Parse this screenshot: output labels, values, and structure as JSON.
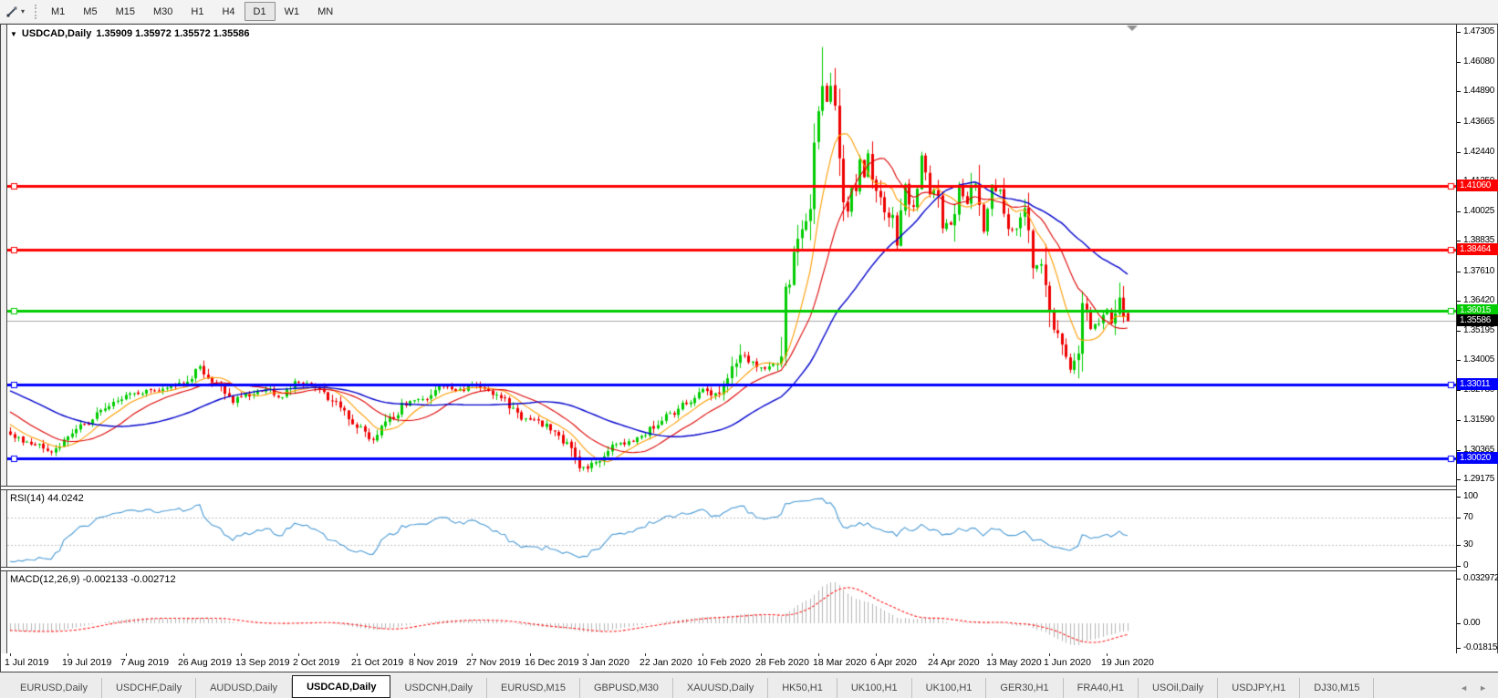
{
  "toolbar": {
    "drawing_tool_icon": "drawing-tools-icon",
    "dropdown_icon": "chevron-down-icon",
    "timeframes": [
      "M1",
      "M5",
      "M15",
      "M30",
      "H1",
      "H4",
      "D1",
      "W1",
      "MN"
    ],
    "active_timeframe": "D1"
  },
  "chart": {
    "title": "USDCAD,Daily",
    "ohlc": "1.35909 1.35972 1.35572 1.35586",
    "current_price": "1.35586",
    "current_price_value": 1.35586,
    "up_color": "#00cc00",
    "down_color": "#ee0000",
    "current_line_color": "#a8a8a8",
    "y_ticks": [
      "1.47305",
      "1.46080",
      "1.44890",
      "1.43665",
      "1.42440",
      "1.41250",
      "1.40025",
      "1.38835",
      "1.37610",
      "1.36420",
      "1.35195",
      "1.34005",
      "1.32780",
      "1.31590",
      "1.30365",
      "1.29175"
    ],
    "y_tick_values": [
      1.47305,
      1.4608,
      1.4489,
      1.43665,
      1.4244,
      1.4125,
      1.40025,
      1.38835,
      1.3761,
      1.3642,
      1.35195,
      1.34005,
      1.3278,
      1.3159,
      1.30365,
      1.29175
    ],
    "x_ticks": [
      "1 Jul 2019",
      "19 Jul 2019",
      "7 Aug 2019",
      "26 Aug 2019",
      "13 Sep 2019",
      "2 Oct 2019",
      "21 Oct 2019",
      "8 Nov 2019",
      "27 Nov 2019",
      "16 Dec 2019",
      "3 Jan 2020",
      "22 Jan 2020",
      "10 Feb 2020",
      "28 Feb 2020",
      "18 Mar 2020",
      "6 Apr 2020",
      "24 Apr 2020",
      "13 May 2020",
      "1 Jun 2020",
      "19 Jun 2020"
    ],
    "horizontal_lines": [
      {
        "label": "1.41060",
        "value": 1.4106,
        "color": "#ff0000"
      },
      {
        "label": "1.38464",
        "value": 1.38464,
        "color": "#ff0000"
      },
      {
        "label": "1.36015",
        "value": 1.36015,
        "color": "#00cc00"
      },
      {
        "label": "1.33011",
        "value": 1.33011,
        "color": "#0000ff"
      },
      {
        "label": "1.30020",
        "value": 1.3002,
        "color": "#0000ff"
      }
    ]
  },
  "chart_data": {
    "type": "candlestick",
    "symbol": "USDCAD",
    "timeframe": "Daily",
    "last_bar": {
      "open": 1.35909,
      "high": 1.35972,
      "low": 1.35572,
      "close": 1.35586
    },
    "price_axis_range": [
      1.29175,
      1.47305
    ],
    "visible_bars": 272,
    "bars_per_x_tick": 14,
    "close_anchors": [
      [
        -60,
        1.348
      ],
      [
        -45,
        1.34
      ],
      [
        -30,
        1.336
      ],
      [
        -15,
        1.327
      ],
      [
        -5,
        1.314
      ],
      [
        0,
        1.3095
      ],
      [
        6,
        1.306
      ],
      [
        11,
        1.3032
      ],
      [
        14,
        1.3078
      ],
      [
        18,
        1.314
      ],
      [
        24,
        1.3215
      ],
      [
        30,
        1.3268
      ],
      [
        36,
        1.3282
      ],
      [
        42,
        1.331
      ],
      [
        46,
        1.3368
      ],
      [
        50,
        1.331
      ],
      [
        54,
        1.3235
      ],
      [
        58,
        1.3262
      ],
      [
        62,
        1.329
      ],
      [
        66,
        1.3252
      ],
      [
        70,
        1.3318
      ],
      [
        74,
        1.329
      ],
      [
        78,
        1.3232
      ],
      [
        84,
        1.3132
      ],
      [
        88,
        1.3072
      ],
      [
        92,
        1.316
      ],
      [
        96,
        1.3228
      ],
      [
        100,
        1.3242
      ],
      [
        104,
        1.3298
      ],
      [
        108,
        1.3272
      ],
      [
        112,
        1.33
      ],
      [
        116,
        1.3282
      ],
      [
        120,
        1.3232
      ],
      [
        124,
        1.3172
      ],
      [
        126,
        1.3162
      ],
      [
        130,
        1.313
      ],
      [
        134,
        1.3082
      ],
      [
        137,
        1.2995
      ],
      [
        139,
        1.2962
      ],
      [
        142,
        1.2992
      ],
      [
        146,
        1.3052
      ],
      [
        150,
        1.3068
      ],
      [
        154,
        1.3106
      ],
      [
        158,
        1.3162
      ],
      [
        162,
        1.3202
      ],
      [
        166,
        1.3252
      ],
      [
        168,
        1.3292
      ],
      [
        171,
        1.326
      ],
      [
        174,
        1.3322
      ],
      [
        177,
        1.342
      ],
      [
        180,
        1.3392
      ],
      [
        183,
        1.336
      ],
      [
        185,
        1.3382
      ],
      [
        187,
        1.3422
      ],
      [
        188,
        1.366
      ],
      [
        190,
        1.3812
      ],
      [
        192,
        1.392
      ],
      [
        194,
        1.3992
      ],
      [
        195,
        1.4262
      ],
      [
        196,
        1.442
      ],
      [
        197,
        1.451
      ],
      [
        198,
        1.4442
      ],
      [
        199,
        1.4512
      ],
      [
        200,
        1.442
      ],
      [
        201,
        1.4182
      ],
      [
        202,
        1.4062
      ],
      [
        203,
        1.3992
      ],
      [
        204,
        1.409
      ],
      [
        205,
        1.4062
      ],
      [
        206,
        1.4212
      ],
      [
        207,
        1.414
      ],
      [
        208,
        1.4232
      ],
      [
        210,
        1.4082
      ],
      [
        212,
        1.4012
      ],
      [
        214,
        1.3952
      ],
      [
        215,
        1.3862
      ],
      [
        217,
        1.4092
      ],
      [
        219,
        1.4002
      ],
      [
        221,
        1.4222
      ],
      [
        223,
        1.4062
      ],
      [
        224,
        1.4096
      ],
      [
        226,
        1.3962
      ],
      [
        228,
        1.3942
      ],
      [
        230,
        1.4092
      ],
      [
        232,
        1.4032
      ],
      [
        234,
        1.4132
      ],
      [
        236,
        1.3922
      ],
      [
        238,
        1.4082
      ],
      [
        240,
        1.4112
      ],
      [
        242,
        1.3922
      ],
      [
        244,
        1.3932
      ],
      [
        246,
        1.4002
      ],
      [
        248,
        1.3792
      ],
      [
        250,
        1.3772
      ],
      [
        252,
        1.3562
      ],
      [
        254,
        1.3502
      ],
      [
        256,
        1.3422
      ],
      [
        257,
        1.3362
      ],
      [
        259,
        1.3412
      ],
      [
        260,
        1.3622
      ],
      [
        262,
        1.3542
      ],
      [
        264,
        1.3542
      ],
      [
        266,
        1.3602
      ],
      [
        267,
        1.3535
      ],
      [
        268,
        1.3575
      ],
      [
        269,
        1.3648
      ],
      [
        270,
        1.3588
      ],
      [
        271,
        1.35586
      ]
    ],
    "wick_extremes": [
      {
        "bar": 46,
        "high": 1.3383
      },
      {
        "bar": 139,
        "low": 1.2952
      },
      {
        "bar": 177,
        "high": 1.3465
      },
      {
        "bar": 197,
        "high": 1.4669
      },
      {
        "bar": 199,
        "high": 1.4565
      },
      {
        "bar": 259,
        "low": 1.3372
      },
      {
        "bar": 269,
        "high": 1.3715
      }
    ],
    "moving_averages": [
      {
        "type": "sma",
        "period": 9,
        "color": "#ff9c00"
      },
      {
        "type": "sma",
        "period": 18,
        "color": "#dd0000"
      },
      {
        "type": "sma",
        "period": 40,
        "color": "#0000cc"
      }
    ]
  },
  "rsi": {
    "label": "RSI(14) 44.0242",
    "value": 44.0242,
    "period": 14,
    "line_color": "#4a9ad4",
    "levels": [
      {
        "label": "100",
        "value": 100,
        "dashed": false
      },
      {
        "label": "70",
        "value": 70,
        "dashed": true
      },
      {
        "label": "30",
        "value": 30,
        "dashed": true
      },
      {
        "label": "0",
        "value": 0,
        "dashed": false
      }
    ]
  },
  "macd": {
    "label": "MACD(12,26,9) -0.002133 -0.002712",
    "main_value": -0.002133,
    "signal_value": -0.002712,
    "fast": 12,
    "slow": 26,
    "signal_period": 9,
    "histogram_color": "#b4b4b4",
    "signal_color": "#ff2020",
    "scale": [
      {
        "label": "0.032972",
        "value": 0.032972
      },
      {
        "label": "0.00",
        "value": 0
      },
      {
        "label": "-0.018154",
        "value": -0.018154
      }
    ]
  },
  "tabs": {
    "items": [
      "EURUSD,Daily",
      "USDCHF,Daily",
      "AUDUSD,Daily",
      "USDCAD,Daily",
      "USDCNH,Daily",
      "EURUSD,M15",
      "GBPUSD,M30",
      "XAUUSD,Daily",
      "HK50,H1",
      "UK100,H1",
      "UK100,H1",
      "GER30,H1",
      "FRA40,H1",
      "USOil,Daily",
      "USDJPY,H1",
      "DJ30,M15"
    ],
    "active_index": 3,
    "left_arrow_icon": "arrow-left-icon",
    "right_arrow_icon": "arrow-right-icon"
  }
}
